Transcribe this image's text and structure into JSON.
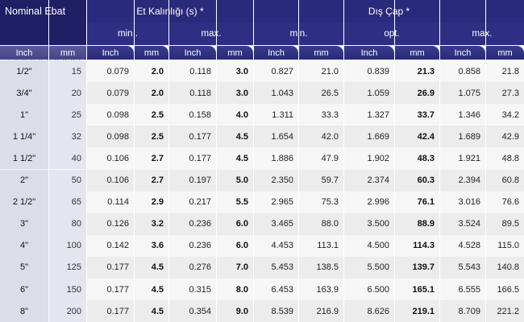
{
  "headers": {
    "nominal": "Nominal Ebat",
    "wall": "Et Kalınlığı (s) *",
    "outer": "Dış Çap *",
    "wall_min": "min .",
    "wall_max": "max.",
    "outer_min": "min.",
    "outer_opt": "opt.",
    "outer_max": "max."
  },
  "units": [
    "Inch",
    "mm",
    "Inch",
    "mm",
    "Inch",
    "mm",
    "Inch",
    "mm",
    "Inch",
    "mm",
    "Inch",
    "mm"
  ],
  "rows": [
    [
      "1/2\"",
      "15",
      "0.079",
      "2.0",
      "0.118",
      "3.0",
      "0.827",
      "21.0",
      "0.839",
      "21.3",
      "0.858",
      "21.8"
    ],
    [
      "3/4\"",
      "20",
      "0.079",
      "2.0",
      "0.118",
      "3.0",
      "1.043",
      "26.5",
      "1.059",
      "26.9",
      "1.075",
      "27.3"
    ],
    [
      "1\"",
      "25",
      "0.098",
      "2.5",
      "0.158",
      "4.0",
      "1.311",
      "33.3",
      "1.327",
      "33.7",
      "1.346",
      "34.2"
    ],
    [
      "1 1/4\"",
      "32",
      "0.098",
      "2.5",
      "0.177",
      "4.5",
      "1.654",
      "42.0",
      "1.669",
      "42.4",
      "1.689",
      "42.9"
    ],
    [
      "1 1/2\"",
      "40",
      "0.106",
      "2.7",
      "0.177",
      "4.5",
      "1.886",
      "47.9",
      "1.902",
      "48.3",
      "1.921",
      "48.8"
    ],
    [
      "2\"",
      "50",
      "0.106",
      "2.7",
      "0.197",
      "5.0",
      "2.350",
      "59.7",
      "2.374",
      "60.3",
      "2.394",
      "60.8"
    ],
    [
      "2 1/2\"",
      "65",
      "0.114",
      "2.9",
      "0.217",
      "5.5",
      "2.965",
      "75.3",
      "2.996",
      "76.1",
      "3.016",
      "76.6"
    ],
    [
      "3\"",
      "80",
      "0.126",
      "3.2",
      "0.236",
      "6.0",
      "3.465",
      "88.0",
      "3.500",
      "88.9",
      "3.524",
      "89.5"
    ],
    [
      "4\"",
      "100",
      "0.142",
      "3.6",
      "0.236",
      "6.0",
      "4.453",
      "113.1",
      "4.500",
      "114.3",
      "4.528",
      "115.0"
    ],
    [
      "5\"",
      "125",
      "0.177",
      "4.5",
      "0.276",
      "7.0",
      "5.453",
      "138.5",
      "5.500",
      "139.7",
      "5.543",
      "140.8"
    ],
    [
      "6\"",
      "150",
      "0.177",
      "4.5",
      "0.315",
      "8.0",
      "6.453",
      "163.9",
      "6.500",
      "165.1",
      "6.555",
      "166.5"
    ],
    [
      "8\"",
      "200",
      "0.177",
      "4.5",
      "0.354",
      "9.0",
      "8.539",
      "216.9",
      "8.626",
      "219.1",
      "8.709",
      "221.2"
    ]
  ]
}
